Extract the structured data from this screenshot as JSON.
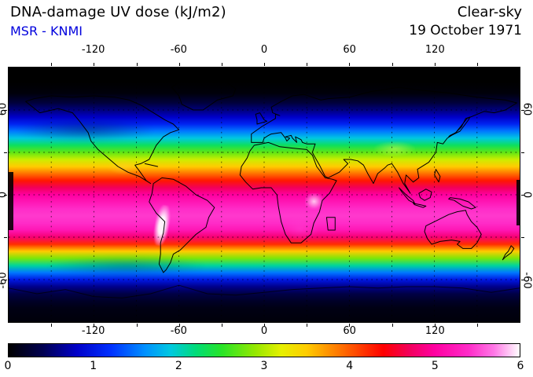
{
  "header": {
    "title": "DNA-damage UV dose (kJ/m2)",
    "source": "MSR - KNMI",
    "condition": "Clear-sky",
    "date": "19 October 1971"
  },
  "colors": {
    "source_text": "#0000dd",
    "background": "#ffffff",
    "frame": "#000000"
  },
  "axes": {
    "lon_labels": [
      "-120",
      "-60",
      "0",
      "60",
      "120"
    ],
    "lat_labels": [
      "60",
      "0",
      "-60"
    ]
  },
  "colorbar": {
    "tick_labels": [
      "0",
      "1",
      "2",
      "3",
      "4",
      "5",
      "6"
    ]
  },
  "chart_data": {
    "type": "heatmap",
    "title": "DNA-damage UV dose (kJ/m2)",
    "subtitle": "MSR - KNMI",
    "condition": "Clear-sky",
    "date": "19 October 1971",
    "projection": "equirectangular world map with coastlines",
    "lon_range": [
      -180,
      180
    ],
    "lat_range": [
      -90,
      90
    ],
    "lon_ticks": [
      -120,
      -60,
      0,
      60,
      120
    ],
    "lat_ticks": [
      60,
      0,
      -60
    ],
    "grid": "black dotted graticule every 30 degrees",
    "colorbar": {
      "min": 0,
      "max": 6,
      "ticks": [
        0,
        1,
        2,
        3,
        4,
        5,
        6
      ],
      "unit": "kJ/m2",
      "colormap": [
        {
          "value": 0.0,
          "color": "#000000"
        },
        {
          "value": 0.4,
          "color": "#000050"
        },
        {
          "value": 0.8,
          "color": "#0000c8"
        },
        {
          "value": 1.2,
          "color": "#0030ff"
        },
        {
          "value": 1.6,
          "color": "#0090ff"
        },
        {
          "value": 1.9,
          "color": "#00c8e0"
        },
        {
          "value": 2.2,
          "color": "#00dc78"
        },
        {
          "value": 2.5,
          "color": "#28e428"
        },
        {
          "value": 2.9,
          "color": "#96e800"
        },
        {
          "value": 3.2,
          "color": "#e6f000"
        },
        {
          "value": 3.5,
          "color": "#ffcc00"
        },
        {
          "value": 3.8,
          "color": "#ff8800"
        },
        {
          "value": 4.1,
          "color": "#ff4400"
        },
        {
          "value": 4.4,
          "color": "#ff0000"
        },
        {
          "value": 4.7,
          "color": "#f2005a"
        },
        {
          "value": 5.0,
          "color": "#ff00a0"
        },
        {
          "value": 5.4,
          "color": "#ff2cc8"
        },
        {
          "value": 5.7,
          "color": "#ff78e6"
        },
        {
          "value": 6.0,
          "color": "#ffffff"
        }
      ]
    },
    "zonal_mean_profile": {
      "lat": [
        90,
        80,
        72,
        65,
        60,
        55,
        50,
        45,
        40,
        35,
        30,
        25,
        20,
        15,
        10,
        5,
        0,
        -5,
        -10,
        -15,
        -20,
        -25,
        -30,
        -35,
        -40,
        -45,
        -50,
        -55,
        -60,
        -65,
        -70,
        -75,
        -80,
        -90
      ],
      "dose": [
        0,
        0,
        0.05,
        0.3,
        0.55,
        0.8,
        1.1,
        1.5,
        1.9,
        2.3,
        2.7,
        3.1,
        3.5,
        3.9,
        4.3,
        4.7,
        5.0,
        5.2,
        5.4,
        5.45,
        5.4,
        5.2,
        4.8,
        4.2,
        3.5,
        2.8,
        2.1,
        1.5,
        1.0,
        0.6,
        0.35,
        0.2,
        0.1,
        0.05
      ]
    },
    "notable_features": [
      "Broad magenta/pink maximum band (dose ~5-5.5) centered near 10-15 S, sun south of equator in October",
      "Local maxima approaching 6 (white) along the Andes in South America",
      "Bright spot over the East African highlands",
      "Polar night (dose 0, black) north of about 72 N",
      "Very low dose (dark blue to black) over Antarctica",
      "Wavy longitudinal structure in midlatitude bands"
    ]
  }
}
